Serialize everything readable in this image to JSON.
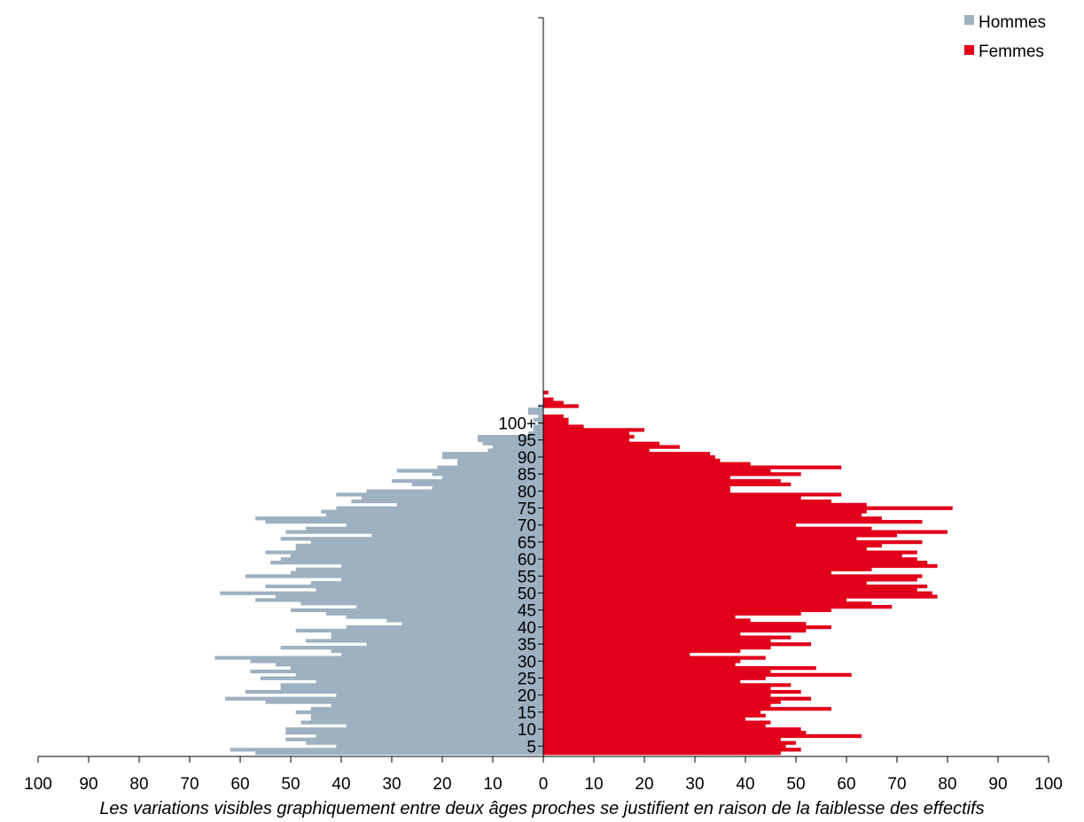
{
  "chart_data": {
    "type": "bar",
    "orientation": "horizontal",
    "subtype": "population-pyramid",
    "ages": [
      3,
      4,
      5,
      6,
      7,
      8,
      9,
      10,
      11,
      12,
      13,
      14,
      15,
      16,
      17,
      18,
      19,
      20,
      21,
      22,
      23,
      24,
      25,
      26,
      27,
      28,
      29,
      30,
      31,
      32,
      33,
      34,
      35,
      36,
      37,
      38,
      39,
      40,
      41,
      42,
      43,
      44,
      45,
      46,
      47,
      48,
      49,
      50,
      51,
      52,
      53,
      54,
      55,
      56,
      57,
      58,
      59,
      60,
      61,
      62,
      63,
      64,
      65,
      66,
      67,
      68,
      69,
      70,
      71,
      72,
      73,
      74,
      75,
      76,
      77,
      78,
      79,
      80,
      81,
      82,
      83,
      84,
      85,
      86,
      87,
      88,
      89,
      90,
      91,
      92,
      93,
      94,
      95,
      96,
      97,
      98,
      99,
      100,
      101,
      102,
      103,
      104,
      105,
      106,
      107,
      108,
      109
    ],
    "series": [
      {
        "name": "Hommes",
        "color": "#9fb1c1",
        "side": "left",
        "values": [
          57,
          62,
          41,
          47,
          51,
          45,
          51,
          51,
          39,
          48,
          46,
          46,
          49,
          46,
          42,
          55,
          63,
          41,
          59,
          52,
          52,
          45,
          56,
          49,
          58,
          50,
          53,
          58,
          65,
          40,
          42,
          52,
          35,
          47,
          42,
          42,
          49,
          39,
          28,
          31,
          39,
          43,
          50,
          37,
          48,
          57,
          53,
          64,
          45,
          55,
          46,
          40,
          59,
          50,
          49,
          40,
          54,
          52,
          50,
          55,
          49,
          49,
          46,
          52,
          34,
          51,
          47,
          39,
          55,
          57,
          43,
          44,
          41,
          29,
          38,
          36,
          41,
          35,
          22,
          26,
          30,
          20,
          22,
          29,
          21,
          17,
          17,
          20,
          20,
          11,
          10,
          12,
          13,
          13,
          3,
          2,
          2,
          1,
          2,
          1,
          3,
          3,
          1,
          0,
          0,
          0,
          0
        ]
      },
      {
        "name": "Femmes",
        "color": "#e2001a",
        "side": "right",
        "values": [
          47,
          51,
          48,
          50,
          47,
          63,
          52,
          51,
          44,
          45,
          40,
          44,
          43,
          57,
          45,
          47,
          53,
          45,
          51,
          45,
          49,
          39,
          44,
          61,
          45,
          54,
          38,
          39,
          44,
          29,
          39,
          45,
          53,
          45,
          49,
          39,
          52,
          57,
          52,
          41,
          38,
          51,
          57,
          69,
          65,
          60,
          78,
          77,
          74,
          76,
          64,
          74,
          75,
          57,
          65,
          78,
          76,
          74,
          71,
          74,
          64,
          67,
          75,
          62,
          70,
          80,
          65,
          50,
          75,
          67,
          63,
          64,
          81,
          64,
          57,
          51,
          59,
          37,
          37,
          49,
          47,
          37,
          51,
          45,
          59,
          41,
          35,
          34,
          33,
          21,
          27,
          23,
          17,
          18,
          17,
          20,
          8,
          5,
          5,
          4,
          0,
          0,
          7,
          4,
          2,
          0,
          1
        ]
      }
    ],
    "y_axis": {
      "tick_labels": [
        "5",
        "10",
        "15",
        "20",
        "25",
        "30",
        "35",
        "40",
        "45",
        "50",
        "55",
        "60",
        "65",
        "70",
        "75",
        "80",
        "85",
        "90",
        "95",
        "100+"
      ],
      "tick_ages": [
        5,
        10,
        15,
        20,
        25,
        30,
        35,
        40,
        45,
        50,
        55,
        60,
        65,
        70,
        75,
        80,
        85,
        90,
        95,
        100
      ]
    },
    "x_axis": {
      "tick_labels": [
        "100",
        "90",
        "80",
        "70",
        "60",
        "50",
        "40",
        "30",
        "20",
        "10",
        "0",
        "10",
        "20",
        "30",
        "40",
        "50",
        "60",
        "70",
        "80",
        "90",
        "100"
      ],
      "range": [
        -100,
        100
      ]
    },
    "legend": {
      "placement": "top-right",
      "entries": [
        "Hommes",
        "Femmes"
      ]
    },
    "grid": false
  },
  "caption": "Les variations visibles graphiquement entre deux âges proches se justifient en raison de la faiblesse des effectifs"
}
